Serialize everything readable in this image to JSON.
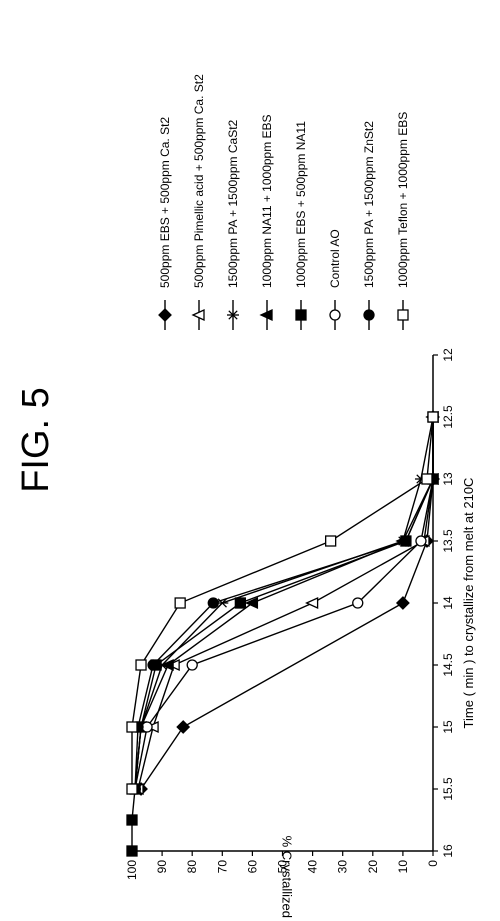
{
  "figure_label": "FIG. 5",
  "chart_data": {
    "type": "line",
    "title": "",
    "xlabel": "Time ( min ) to crystallize from melt at 210C",
    "ylabel": "% Crystallized by DSC",
    "xlim": [
      12,
      16
    ],
    "ylim": [
      0,
      100
    ],
    "x_ticks": [
      "12",
      "12.5",
      "13",
      "13.5",
      "14",
      "14.5",
      "15",
      "15.5",
      "16"
    ],
    "y_ticks": [
      "0",
      "10",
      "20",
      "30",
      "40",
      "50",
      "60",
      "70",
      "80",
      "90",
      "100"
    ],
    "legend_position": "right",
    "series": [
      {
        "name": "500ppm EBS + 500ppm Ca. St2",
        "marker": "filled-diamond",
        "x": [
          12.5,
          13,
          13.5,
          14,
          15,
          15.5
        ],
        "y": [
          0,
          0,
          2,
          10,
          83,
          97
        ]
      },
      {
        "name": "500ppm Pimellic acid + 500ppm Ca. St2",
        "marker": "open-triangle",
        "x": [
          12.5,
          13,
          13.5,
          14,
          14.5,
          15,
          15.5
        ],
        "y": [
          0,
          0,
          3,
          40,
          86,
          93,
          98
        ]
      },
      {
        "name": "1500ppm PA + 1500ppm CaSt2",
        "marker": "asterisk",
        "x": [
          12.5,
          13,
          13.5,
          14,
          14.5,
          15,
          15.5
        ],
        "y": [
          0,
          4,
          10,
          70,
          90,
          97,
          99
        ]
      },
      {
        "name": "1000ppm NA11 + 1000ppm EBS",
        "marker": "filled-triangle",
        "x": [
          12.5,
          13,
          13.5,
          14,
          14.5,
          15,
          15.5
        ],
        "y": [
          0,
          0,
          10,
          60,
          88,
          97,
          99
        ]
      },
      {
        "name": "1000ppm EBS + 500ppm NA11",
        "marker": "filled-square",
        "x": [
          12.5,
          13,
          13.5,
          14,
          14.5,
          15,
          15.5,
          15.75,
          16
        ],
        "y": [
          0,
          0,
          9,
          64,
          92,
          97,
          99,
          100,
          100
        ]
      },
      {
        "name": "Control AO",
        "marker": "open-circle",
        "x": [
          12.5,
          13,
          13.5,
          14,
          14.5,
          15,
          15.5
        ],
        "y": [
          0,
          0,
          4,
          25,
          80,
          95,
          99
        ]
      },
      {
        "name": "1500ppm PA + 1500ppm ZnSt2",
        "marker": "filled-circle",
        "x": [
          12.5,
          13,
          13.5,
          14,
          14.5,
          15,
          15.5
        ],
        "y": [
          0,
          0,
          9,
          73,
          93,
          98,
          99
        ]
      },
      {
        "name": "1000ppm Teflon + 1000ppm EBS",
        "marker": "open-square",
        "x": [
          12.5,
          13,
          13.5,
          14,
          14.5,
          15,
          15.5
        ],
        "y": [
          0,
          2,
          34,
          84,
          97,
          100,
          100
        ]
      }
    ]
  }
}
